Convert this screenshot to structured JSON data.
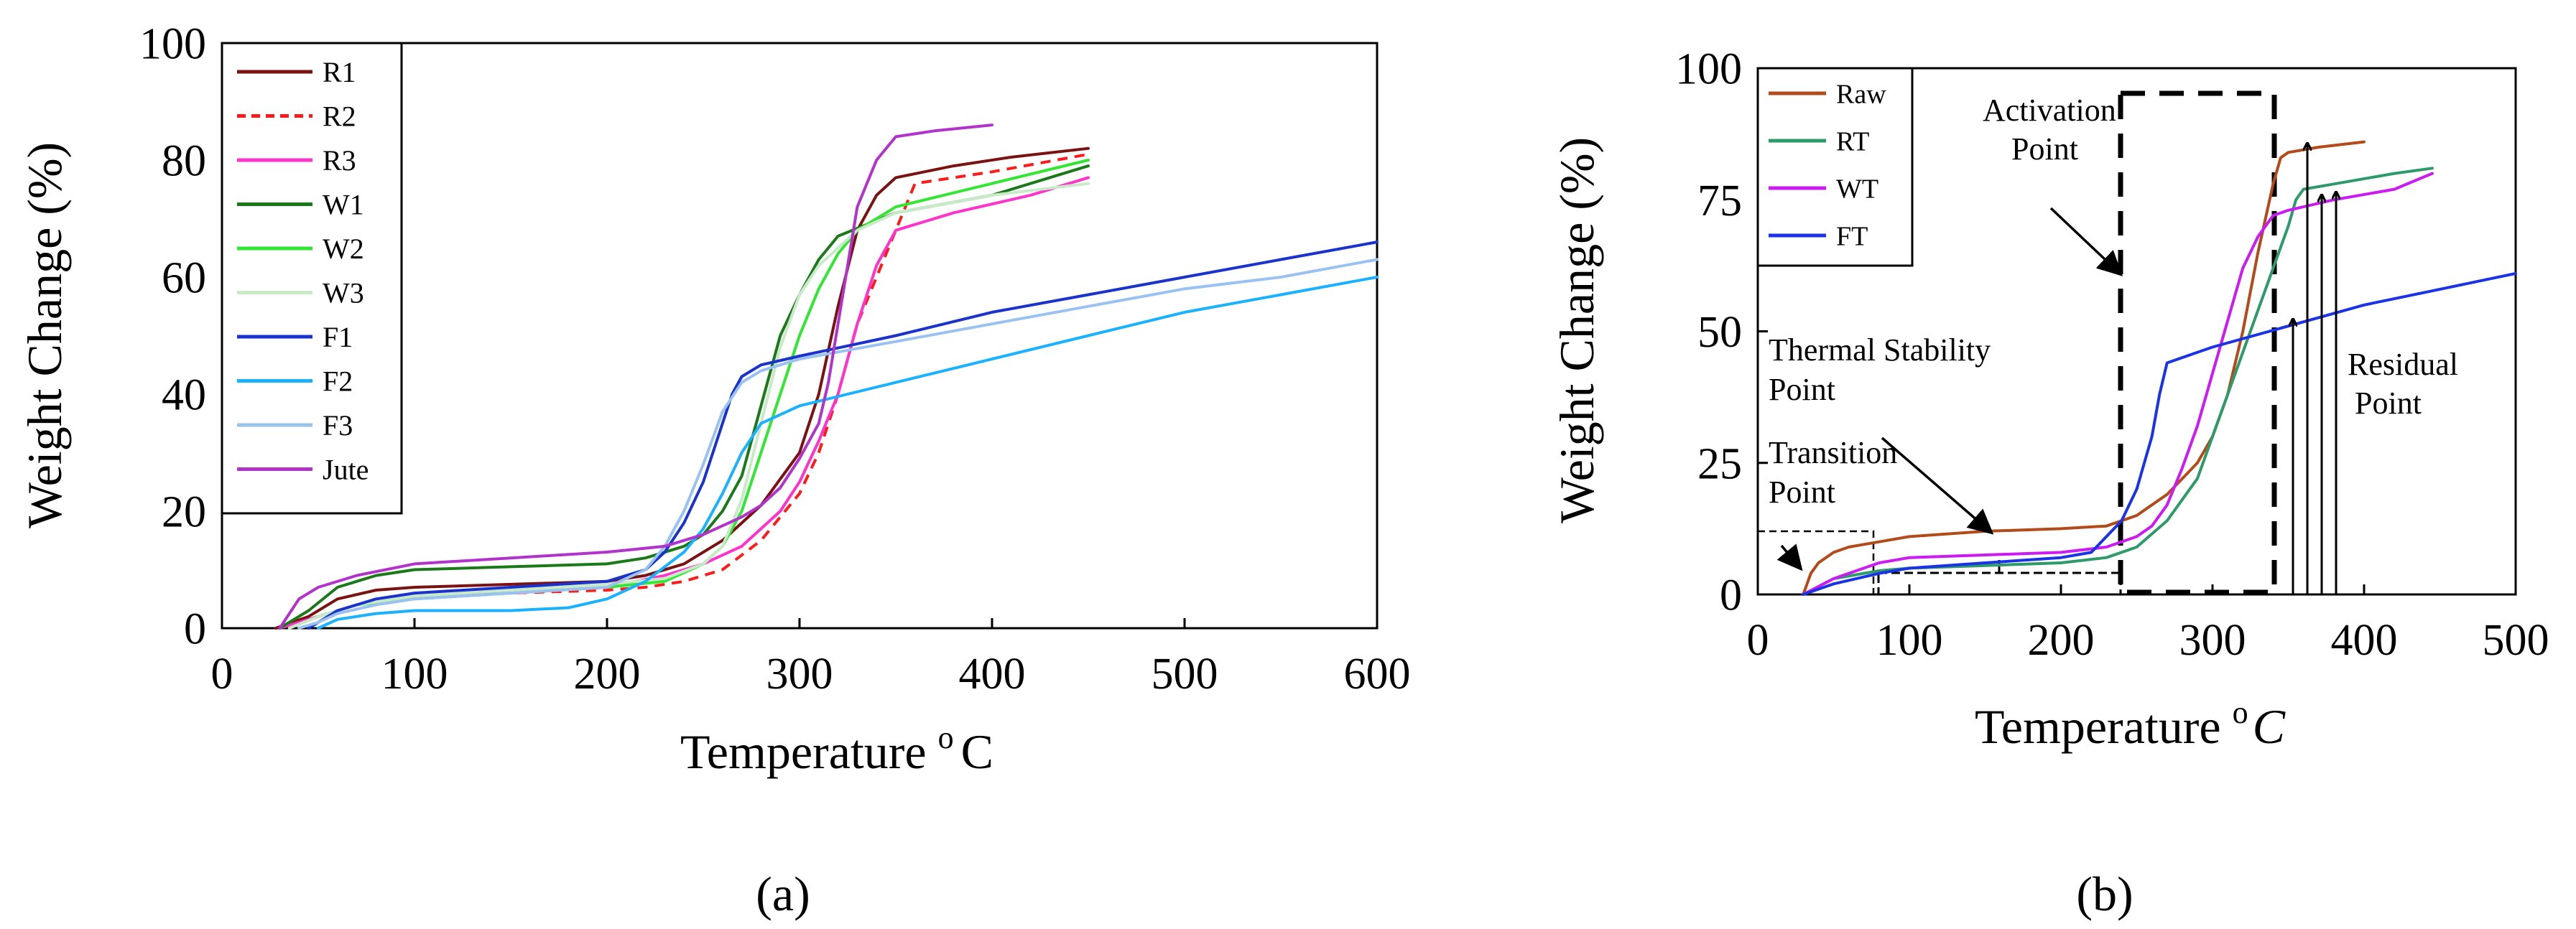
{
  "colors": {
    "R1": "#7a1212",
    "R2": "#ff1a1a",
    "R3": "#ff33cc",
    "W1": "#1a7a1a",
    "W2": "#33e633",
    "W3": "#c9eac9",
    "F1": "#1a33cc",
    "F2": "#1ab2ff",
    "F3": "#99c2f2",
    "Jute": "#b233cc",
    "Raw": "#b24a1a",
    "RT": "#2e9a6a",
    "WT": "#cc1af2",
    "FT": "#1a33e6"
  },
  "chart_data": [
    {
      "type": "line",
      "panel_label": "(a)",
      "title": "",
      "xlabel": "Temperature",
      "xlabel_sup": "o",
      "xlabel_unit": "C",
      "ylabel": "Weight Change (%)",
      "xlim": [
        0,
        600
      ],
      "ylim": [
        0,
        100
      ],
      "xticks": [
        "0",
        "100",
        "200",
        "300",
        "400",
        "500",
        "600"
      ],
      "yticks": [
        "0",
        "20",
        "40",
        "60",
        "80",
        "100"
      ],
      "grid": false,
      "legend_position": "top-left",
      "series": [
        {
          "name": "R1",
          "style": "solid",
          "x": [
            28,
            45,
            60,
            80,
            100,
            150,
            200,
            220,
            240,
            260,
            280,
            300,
            310,
            320,
            330,
            340,
            350,
            380,
            410,
            450
          ],
          "y": [
            0,
            2,
            5,
            6.5,
            7,
            7.5,
            8,
            9,
            11,
            15,
            21,
            30,
            40,
            55,
            68,
            74,
            77,
            79,
            80.5,
            82
          ]
        },
        {
          "name": "R2",
          "style": "dashed",
          "x": [
            30,
            50,
            70,
            90,
            110,
            150,
            200,
            220,
            240,
            260,
            280,
            300,
            310,
            320,
            330,
            340,
            350,
            360,
            400,
            450
          ],
          "y": [
            0,
            2,
            4,
            5,
            5.5,
            6,
            6.5,
            7,
            8,
            10,
            15,
            23,
            30,
            40,
            52,
            60,
            68,
            76,
            78,
            81
          ]
        },
        {
          "name": "R3",
          "style": "solid",
          "x": [
            30,
            50,
            70,
            100,
            150,
            200,
            230,
            250,
            270,
            290,
            300,
            310,
            320,
            330,
            340,
            350,
            380,
            420,
            450
          ],
          "y": [
            0,
            2,
            4,
            5.5,
            6,
            7,
            9,
            11,
            14,
            20,
            25,
            32,
            40,
            52,
            62,
            68,
            71,
            74,
            77
          ]
        },
        {
          "name": "W1",
          "style": "solid",
          "x": [
            30,
            45,
            60,
            80,
            100,
            150,
            200,
            220,
            240,
            250,
            260,
            270,
            280,
            290,
            300,
            310,
            320,
            350,
            400,
            450
          ],
          "y": [
            0,
            3,
            7,
            9,
            10,
            10.5,
            11,
            12,
            14,
            16,
            20,
            26,
            38,
            50,
            57,
            63,
            67,
            71,
            74,
            79
          ]
        },
        {
          "name": "W2",
          "style": "solid",
          "x": [
            35,
            50,
            70,
            100,
            150,
            200,
            230,
            250,
            260,
            270,
            280,
            290,
            300,
            310,
            320,
            330,
            350,
            400,
            450
          ],
          "y": [
            0,
            2,
            4,
            5,
            6,
            7,
            8,
            11,
            14,
            20,
            30,
            40,
            50,
            58,
            64,
            68,
            72,
            76,
            80
          ]
        },
        {
          "name": "W3",
          "style": "solid",
          "x": [
            35,
            50,
            70,
            100,
            150,
            200,
            230,
            250,
            260,
            270,
            280,
            290,
            300,
            310,
            320,
            330,
            350,
            400,
            450
          ],
          "y": [
            0,
            2,
            4,
            5.5,
            6.5,
            7.5,
            8.5,
            11,
            14,
            22,
            35,
            48,
            57,
            62,
            65,
            68,
            71,
            74,
            76
          ]
        },
        {
          "name": "F1",
          "style": "solid",
          "x": [
            45,
            50,
            60,
            80,
            100,
            150,
            200,
            220,
            230,
            240,
            250,
            260,
            265,
            270,
            280,
            300,
            350,
            400,
            450,
            500,
            550,
            600
          ],
          "y": [
            0,
            1,
            3,
            5,
            6,
            7,
            8,
            10,
            13,
            18,
            25,
            35,
            40,
            43,
            45,
            46.5,
            50,
            54,
            57,
            60,
            63,
            66
          ]
        },
        {
          "name": "F2",
          "style": "solid",
          "x": [
            50,
            60,
            80,
            100,
            150,
            180,
            200,
            220,
            240,
            250,
            260,
            270,
            280,
            300,
            350,
            400,
            450,
            500,
            550,
            600
          ],
          "y": [
            0,
            1.5,
            2.5,
            3,
            3,
            3.5,
            5,
            8,
            13,
            17,
            23,
            30,
            35,
            38,
            42,
            46,
            50,
            54,
            57,
            60
          ]
        },
        {
          "name": "F3",
          "style": "solid",
          "x": [
            40,
            50,
            60,
            80,
            100,
            150,
            200,
            220,
            230,
            240,
            250,
            260,
            270,
            280,
            300,
            350,
            400,
            450,
            500,
            550,
            600
          ],
          "y": [
            0,
            1,
            2.5,
            4,
            5,
            6,
            7,
            10,
            14,
            20,
            28,
            37,
            42,
            44,
            46,
            49,
            52,
            55,
            58,
            60,
            63
          ]
        },
        {
          "name": "Jute",
          "style": "solid",
          "x": [
            30,
            40,
            50,
            70,
            100,
            150,
            200,
            230,
            250,
            270,
            280,
            290,
            300,
            310,
            315,
            320,
            325,
            330,
            340,
            350,
            370,
            400
          ],
          "y": [
            0,
            5,
            7,
            9,
            11,
            12,
            13,
            14,
            16,
            19,
            21,
            24,
            29,
            35,
            42,
            52,
            62,
            72,
            80,
            84,
            85,
            86
          ]
        }
      ]
    },
    {
      "type": "line",
      "panel_label": "(b)",
      "title": "",
      "xlabel": "Temperature",
      "xlabel_sup": "o",
      "xlabel_unit": "C",
      "ylabel": "Weight Change (%)",
      "xlim": [
        0,
        500
      ],
      "ylim": [
        0,
        100
      ],
      "xticks": [
        "0",
        "100",
        "200",
        "300",
        "400",
        "500"
      ],
      "yticks": [
        "0",
        "25",
        "50",
        "75",
        "100"
      ],
      "grid": false,
      "legend_position": "top-left",
      "series": [
        {
          "name": "Raw",
          "style": "solid",
          "x": [
            30,
            35,
            40,
            50,
            60,
            80,
            100,
            150,
            200,
            230,
            250,
            270,
            290,
            300,
            310,
            320,
            330,
            340,
            345,
            350,
            370,
            400
          ],
          "y": [
            0,
            4,
            6,
            8,
            9,
            10,
            11,
            12,
            12.5,
            13,
            15,
            19,
            25,
            30,
            38,
            50,
            65,
            78,
            83,
            84,
            85,
            86
          ]
        },
        {
          "name": "RT",
          "style": "solid",
          "x": [
            30,
            50,
            80,
            100,
            150,
            200,
            230,
            250,
            270,
            290,
            300,
            310,
            320,
            330,
            340,
            350,
            355,
            360,
            380,
            420,
            445
          ],
          "y": [
            0,
            3,
            4.5,
            5,
            5.5,
            6,
            7,
            9,
            14,
            22,
            30,
            38,
            46,
            54,
            62,
            70,
            75,
            77,
            78,
            80,
            81
          ]
        },
        {
          "name": "WT",
          "style": "solid",
          "x": [
            30,
            50,
            80,
            100,
            150,
            200,
            230,
            250,
            260,
            270,
            280,
            290,
            300,
            310,
            320,
            330,
            340,
            350,
            380,
            420,
            445
          ],
          "y": [
            0,
            3,
            6,
            7,
            7.5,
            8,
            9,
            11,
            13,
            17,
            24,
            32,
            42,
            52,
            62,
            68,
            72,
            73,
            75,
            77,
            80
          ]
        },
        {
          "name": "FT",
          "style": "solid",
          "x": [
            30,
            50,
            80,
            100,
            150,
            200,
            220,
            240,
            250,
            260,
            265,
            270,
            280,
            300,
            350,
            400,
            450,
            500
          ],
          "y": [
            0,
            2,
            4,
            5,
            6,
            7,
            8,
            14,
            20,
            30,
            38,
            44,
            45,
            47,
            51,
            55,
            58,
            61
          ]
        }
      ],
      "annotations": [
        "Activation",
        "Point",
        "Thermal Stability",
        "Point",
        "Transition",
        "Point",
        "Residual",
        "Point"
      ]
    }
  ]
}
